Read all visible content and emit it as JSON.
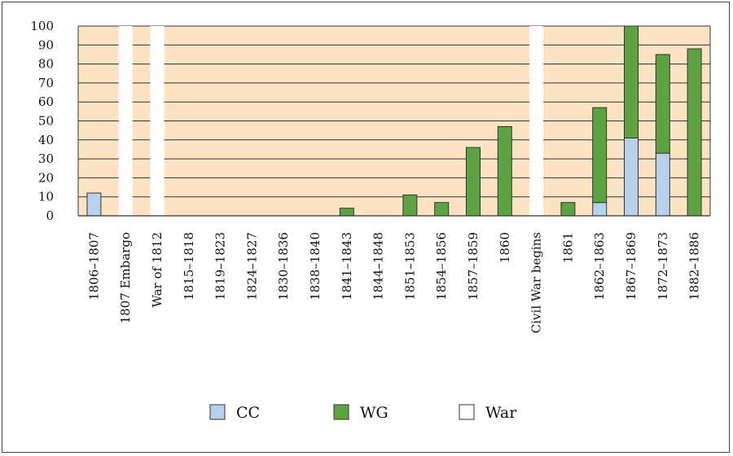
{
  "chart_data": {
    "type": "bar",
    "stacked": true,
    "categories": [
      "1806–1807",
      "1807 Embargo",
      "War of 1812",
      "1815–1818",
      "1819–1823",
      "1824–1827",
      "1830–1836",
      "1838–1840",
      "1841–1843",
      "1844–1848",
      "1851–1853",
      "1854–1856",
      "1857–1859",
      "1860",
      "Civil War begins",
      "1861",
      "1862–1863",
      "1867–1869",
      "1872–1873",
      "1882–1886"
    ],
    "series": [
      {
        "name": "CC",
        "color": "#b8d1ea",
        "values": [
          12,
          0,
          0,
          0,
          0,
          0,
          0,
          0,
          0,
          0,
          0,
          0,
          0,
          0,
          0,
          0,
          7,
          41,
          33,
          0
        ]
      },
      {
        "name": "WG",
        "color": "#5ea343",
        "values": [
          0,
          0,
          0,
          0,
          0,
          0,
          0,
          0,
          4,
          0,
          11,
          7,
          36,
          47,
          0,
          7,
          50,
          59,
          52,
          88
        ]
      },
      {
        "name": "War",
        "color": "#ffffff",
        "values": [
          0,
          100,
          100,
          0,
          0,
          0,
          0,
          0,
          0,
          0,
          0,
          0,
          0,
          0,
          100,
          0,
          0,
          0,
          0,
          0
        ]
      }
    ],
    "y_ticks": [
      "0",
      "10",
      "20",
      "30",
      "40",
      "50",
      "60",
      "70",
      "80",
      "90",
      "100"
    ],
    "ylim": [
      0,
      100
    ],
    "grid": true,
    "legend_position": "bottom",
    "plot_background": "#fce3c3"
  }
}
